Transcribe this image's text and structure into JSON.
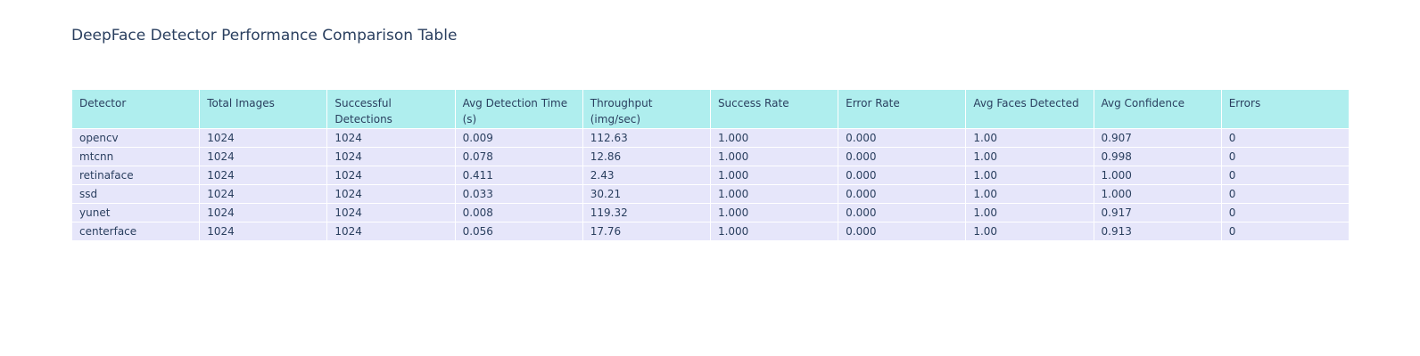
{
  "chart_data": {
    "type": "table",
    "title": "DeepFace Detector Performance Comparison Table",
    "header_color": "#afeeee",
    "cell_color": "#e6e6fa",
    "text_color": "#2a3f5f",
    "columns": [
      "Detector",
      "Total Images",
      "Successful Detections",
      "Avg Detection Time (s)",
      "Throughput (img/sec)",
      "Success Rate",
      "Error Rate",
      "Avg Faces Detected",
      "Avg Confidence",
      "Errors"
    ],
    "header_lines": [
      [
        "Detector"
      ],
      [
        "Total Images"
      ],
      [
        "Successful",
        "Detections"
      ],
      [
        "Avg Detection Time",
        "(s)"
      ],
      [
        "Throughput",
        "(img/sec)"
      ],
      [
        "Success Rate"
      ],
      [
        "Error Rate"
      ],
      [
        "Avg Faces Detected"
      ],
      [
        "Avg Confidence"
      ],
      [
        "Errors"
      ]
    ],
    "rows": [
      [
        "opencv",
        "1024",
        "1024",
        "0.009",
        "112.63",
        "1.000",
        "0.000",
        "1.00",
        "0.907",
        "0"
      ],
      [
        "mtcnn",
        "1024",
        "1024",
        "0.078",
        "12.86",
        "1.000",
        "0.000",
        "1.00",
        "0.998",
        "0"
      ],
      [
        "retinaface",
        "1024",
        "1024",
        "0.411",
        "2.43",
        "1.000",
        "0.000",
        "1.00",
        "1.000",
        "0"
      ],
      [
        "ssd",
        "1024",
        "1024",
        "0.033",
        "30.21",
        "1.000",
        "0.000",
        "1.00",
        "1.000",
        "0"
      ],
      [
        "yunet",
        "1024",
        "1024",
        "0.008",
        "119.32",
        "1.000",
        "0.000",
        "1.00",
        "0.917",
        "0"
      ],
      [
        "centerface",
        "1024",
        "1024",
        "0.056",
        "17.76",
        "1.000",
        "0.000",
        "1.00",
        "0.913",
        "0"
      ]
    ]
  }
}
